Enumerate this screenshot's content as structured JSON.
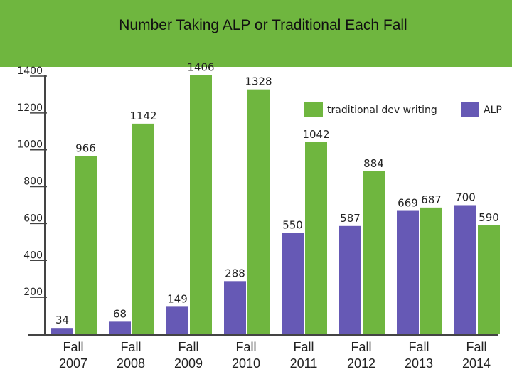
{
  "chart_data": {
    "type": "bar",
    "title": "Number Taking ALP or Traditional Each Fall",
    "categories_line1": [
      "Fall",
      "Fall",
      "Fall",
      "Fall",
      "Fall",
      "Fall",
      "Fall",
      "Fall"
    ],
    "categories_line2": [
      "2007",
      "2008",
      "2009",
      "2010",
      "2011",
      "2012",
      "2013",
      "2014"
    ],
    "categories": [
      "Fall 2007",
      "Fall 2008",
      "Fall 2009",
      "Fall 2010",
      "Fall 2011",
      "Fall 2012",
      "Fall 2013",
      "Fall 2014"
    ],
    "series": [
      {
        "name": "ALP",
        "color": "#6659b5",
        "values": [
          34,
          68,
          149,
          288,
          550,
          587,
          669,
          700
        ]
      },
      {
        "name": "traditional dev writing",
        "color": "#6fb63f",
        "values": [
          966,
          1142,
          1406,
          1328,
          1042,
          884,
          687,
          590
        ]
      }
    ],
    "yticks": [
      "200",
      "400",
      "600",
      "800",
      "1000",
      "1200",
      "1400"
    ],
    "ytick_values": [
      200,
      400,
      600,
      800,
      1000,
      1200,
      1400
    ],
    "ylim": [
      0,
      1500
    ],
    "legend_placement": "top-right",
    "grid": false
  }
}
